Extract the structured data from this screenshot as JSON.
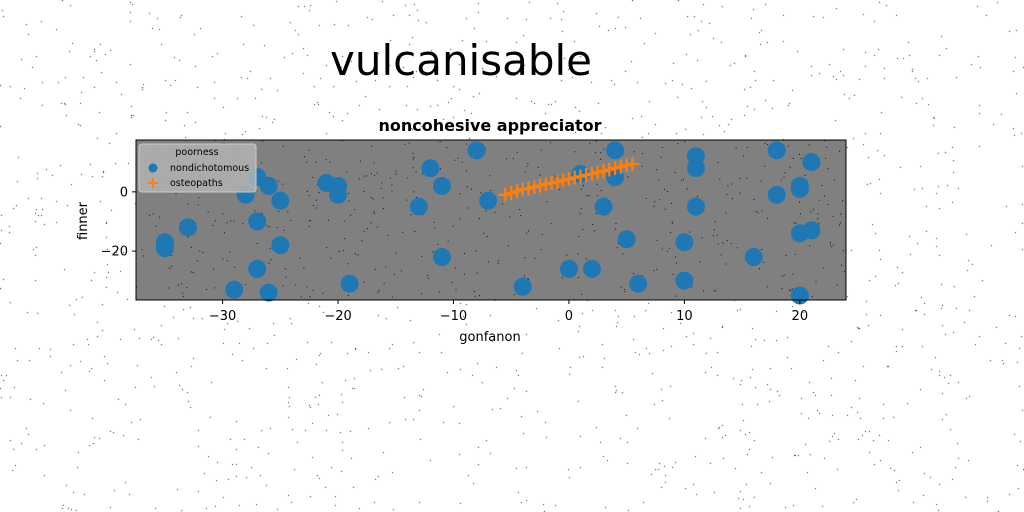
{
  "figure": {
    "suptitle": "vulcanisable"
  },
  "chart_data": {
    "type": "scatter",
    "title": "noncohesive appreciator",
    "xlabel": "gonfanon",
    "ylabel": "finner",
    "xlim": [
      -37.5,
      24
    ],
    "ylim": [
      -36.5,
      17.5
    ],
    "xticks": [
      -30,
      -20,
      -10,
      0,
      10,
      20
    ],
    "yticks": [
      -20,
      0
    ],
    "grid": false,
    "legend": {
      "title": "poorness",
      "placement": "top-left"
    },
    "colors": {
      "background": "#808080",
      "nondichotomous": "#1f77b4",
      "osteopaths": "#ff7f0e"
    },
    "series": [
      {
        "name": "nondichotomous",
        "marker": "circle",
        "points": [
          [
            -35,
            -17
          ],
          [
            -35,
            -19
          ],
          [
            -33,
            -12
          ],
          [
            -29,
            -33
          ],
          [
            -28,
            -1
          ],
          [
            -27,
            5
          ],
          [
            -27,
            -10
          ],
          [
            -27,
            -26
          ],
          [
            -26,
            2
          ],
          [
            -26,
            -34
          ],
          [
            -25,
            -3
          ],
          [
            -25,
            -18
          ],
          [
            -21,
            3
          ],
          [
            -20,
            2
          ],
          [
            -20,
            -1
          ],
          [
            -19,
            -31
          ],
          [
            -13,
            -5
          ],
          [
            -12,
            8
          ],
          [
            -11,
            2
          ],
          [
            -11,
            -22
          ],
          [
            -8,
            14
          ],
          [
            -7,
            -3
          ],
          [
            -4,
            -32
          ],
          [
            0,
            -26
          ],
          [
            1,
            6
          ],
          [
            2,
            -26
          ],
          [
            3,
            -5
          ],
          [
            4,
            14
          ],
          [
            4,
            5
          ],
          [
            5,
            -16
          ],
          [
            6,
            -31
          ],
          [
            10,
            -17
          ],
          [
            10,
            -30
          ],
          [
            11,
            12
          ],
          [
            11,
            8
          ],
          [
            11,
            -5
          ],
          [
            16,
            -22
          ],
          [
            18,
            14
          ],
          [
            18,
            -1
          ],
          [
            20,
            2
          ],
          [
            20,
            1
          ],
          [
            20,
            -14
          ],
          [
            20,
            -35
          ],
          [
            21,
            10
          ],
          [
            21,
            -13
          ]
        ]
      },
      {
        "name": "osteopaths",
        "marker": "plus",
        "points": [
          [
            -5.5,
            -1
          ],
          [
            -5,
            -0.4
          ],
          [
            -4.5,
            0.2
          ],
          [
            -4,
            0.8
          ],
          [
            -3.5,
            1.2
          ],
          [
            -3,
            1.6
          ],
          [
            -2.5,
            2.1
          ],
          [
            -2,
            2.6
          ],
          [
            -1.5,
            3.0
          ],
          [
            -1,
            3.4
          ],
          [
            -0.5,
            3.9
          ],
          [
            0,
            4.3
          ],
          [
            0.5,
            4.8
          ],
          [
            1,
            5.2
          ],
          [
            1.5,
            5.7
          ],
          [
            2,
            6.1
          ],
          [
            2.5,
            6.6
          ],
          [
            3,
            7.0
          ],
          [
            3.5,
            7.5
          ],
          [
            4,
            8.0
          ],
          [
            4.5,
            8.5
          ],
          [
            5,
            9.0
          ],
          [
            5.5,
            9.4
          ]
        ]
      }
    ]
  }
}
